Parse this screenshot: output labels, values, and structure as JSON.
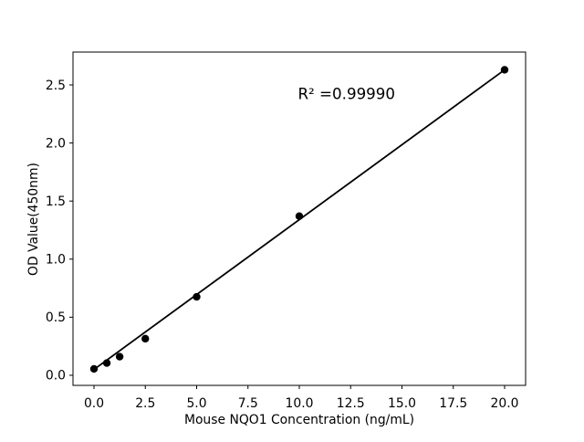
{
  "figure": {
    "background_color": "#ffffff",
    "foreground_color": "#000000"
  },
  "chart_data": {
    "type": "scatter",
    "title": "",
    "xlabel": "Mouse NQO1 Concentration (ng/mL)",
    "ylabel": "OD Value(450nm)",
    "x": [
      0,
      0.625,
      1.25,
      2.5,
      5,
      10,
      20
    ],
    "y": [
      0.055,
      0.105,
      0.16,
      0.315,
      0.675,
      1.37,
      2.63
    ],
    "fit_line": {
      "x": [
        0,
        20
      ],
      "y": [
        0.05,
        2.63
      ]
    },
    "annotation": {
      "text": "R² =0.99990",
      "x": 12.3,
      "y": 2.38
    },
    "xticks": [
      0.0,
      2.5,
      5.0,
      7.5,
      10.0,
      12.5,
      15.0,
      17.5,
      20.0
    ],
    "xtick_labels": [
      "0.0",
      "2.5",
      "5.0",
      "7.5",
      "10.0",
      "12.5",
      "15.0",
      "17.5",
      "20.0"
    ],
    "yticks": [
      0.0,
      0.5,
      1.0,
      1.5,
      2.0,
      2.5
    ],
    "ytick_labels": [
      "0.0",
      "0.5",
      "1.0",
      "1.5",
      "2.0",
      "2.5"
    ],
    "xlim": [
      -1.022,
      21.022
    ],
    "ylim": [
      -0.087,
      2.783
    ],
    "grid": false,
    "legend": null,
    "marker_color": "#000000",
    "line_color": "#000000"
  }
}
